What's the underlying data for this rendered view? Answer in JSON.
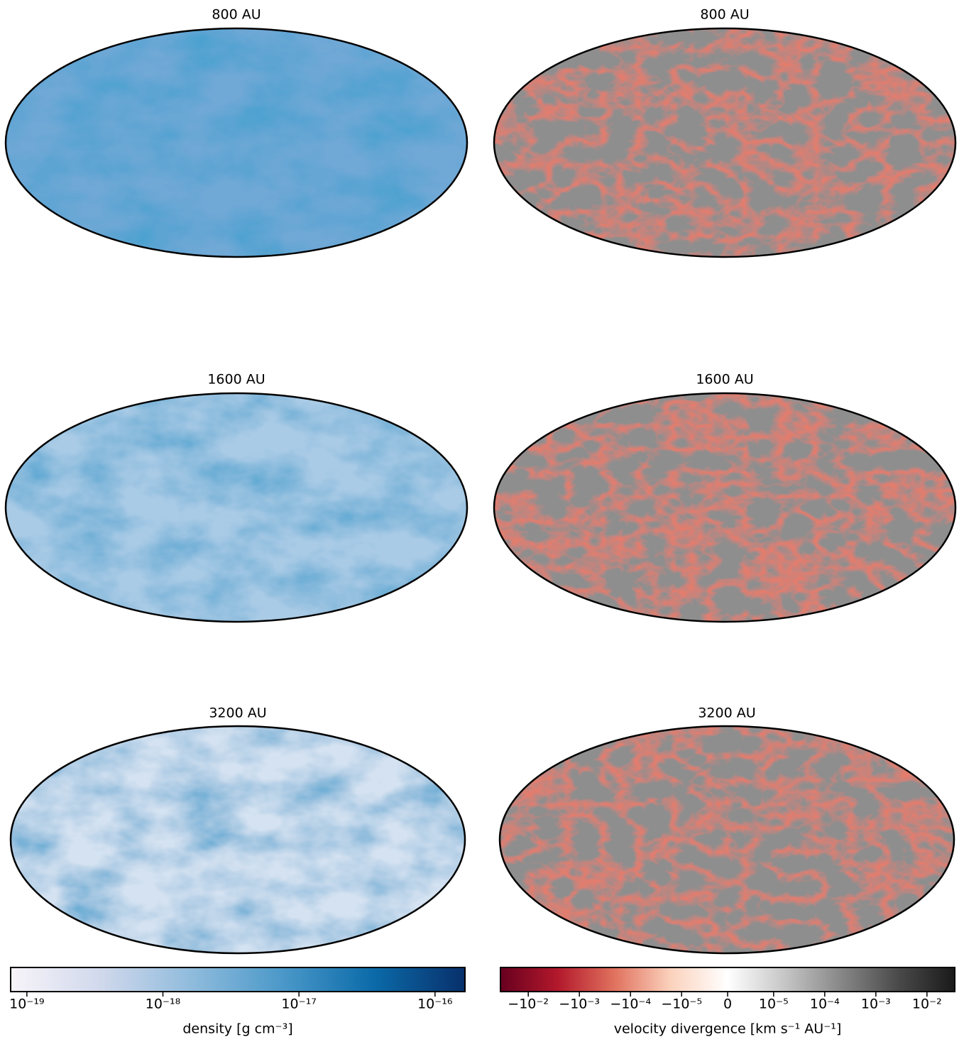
{
  "panels": {
    "left": [
      {
        "title": "800 AU"
      },
      {
        "title": "1600 AU"
      },
      {
        "title": "3200 AU"
      }
    ],
    "right": [
      {
        "title": "800 AU"
      },
      {
        "title": "1600 AU"
      },
      {
        "title": "3200 AU"
      }
    ]
  },
  "colorbars": [
    {
      "label": "density [g cm⁻³]",
      "scale": "log",
      "xlim": [
        7.6e-20,
        1.66e-16
      ],
      "colors": [
        "#f7f4f9",
        "#d0d8ec",
        "#8fbbdc",
        "#4a98c9",
        "#0b6aa8",
        "#08306b"
      ],
      "xticks": [
        {
          "value": 1e-19,
          "label": "10⁻¹⁹"
        },
        {
          "value": 1e-18,
          "label": "10⁻¹⁸"
        },
        {
          "value": 1e-17,
          "label": "10⁻¹⁷"
        },
        {
          "value": 1e-16,
          "label": "10⁻¹⁶"
        }
      ]
    },
    {
      "label": "velocity divergence [km s⁻¹ AU⁻¹]",
      "scale": "symlog",
      "linthresh": 1e-05,
      "xlim": [
        -0.035,
        0.035
      ],
      "colors": [
        "#67001f",
        "#b2182b",
        "#e0715e",
        "#fbd2bd",
        "#ffffff",
        "#c6c6c6",
        "#878787",
        "#4a4a4a",
        "#1a1a1a"
      ],
      "xticks": [
        {
          "value": -0.01,
          "label": "−10⁻²"
        },
        {
          "value": -0.001,
          "label": "−10⁻³"
        },
        {
          "value": -0.0001,
          "label": "−10⁻⁴"
        },
        {
          "value": -1e-05,
          "label": "−10⁻⁵"
        },
        0,
        {
          "value": 1e-05,
          "label": "10⁻⁵"
        },
        {
          "value": 0.0001,
          "label": "10⁻⁴"
        },
        {
          "value": 0.001,
          "label": "10⁻³"
        },
        {
          "value": 0.01,
          "label": "10⁻²"
        }
      ]
    }
  ]
}
